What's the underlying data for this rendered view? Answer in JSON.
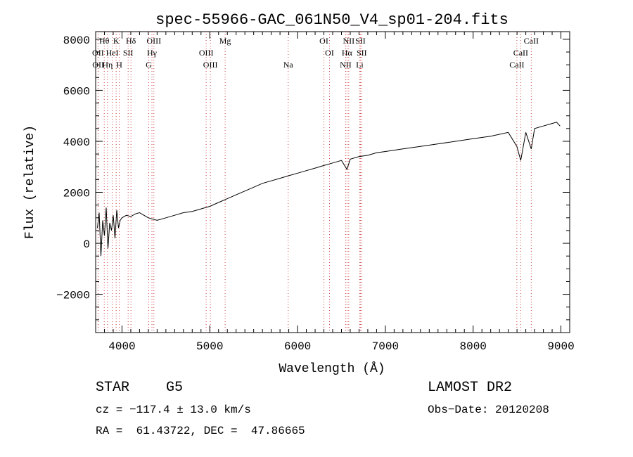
{
  "chart_data": {
    "type": "line",
    "title": "spec-55966-GAC_061N50_V4_sp01-204.fits",
    "xlabel": "Wavelength (Å)",
    "ylabel": "Flux (relative)",
    "xlim": [
      3700,
      9100
    ],
    "ylim": [
      -3500,
      8300
    ],
    "x_ticks": [
      4000,
      5000,
      6000,
      7000,
      8000,
      9000
    ],
    "y_ticks": [
      -2000,
      0,
      2000,
      4000,
      6000,
      8000
    ],
    "grid": false,
    "series": [
      {
        "x": [
          3720,
          3740,
          3760,
          3780,
          3800,
          3820,
          3840,
          3860,
          3880,
          3900,
          3920,
          3940,
          3960,
          3980,
          4000,
          4050,
          4100,
          4150,
          4200,
          4250,
          4300,
          4350,
          4400,
          4500,
          4600,
          4700,
          4800,
          4900,
          5000,
          5100,
          5200,
          5300,
          5400,
          5500,
          5600,
          5700,
          5800,
          5900,
          6000,
          6100,
          6200,
          6300,
          6400,
          6500,
          6563,
          6600,
          6700,
          6800,
          6900,
          7000,
          7200,
          7400,
          7600,
          7800,
          8000,
          8200,
          8400,
          8498,
          8542,
          8600,
          8662,
          8700,
          8800,
          8900,
          8950,
          8990
        ],
        "y": [
          600,
          1200,
          -500,
          900,
          300,
          1400,
          -200,
          800,
          500,
          1100,
          200,
          1300,
          600,
          900,
          1000,
          1100,
          1050,
          1150,
          1200,
          1100,
          1000,
          950,
          900,
          1000,
          1100,
          1200,
          1250,
          1350,
          1450,
          1600,
          1750,
          1900,
          2050,
          2200,
          2350,
          2450,
          2550,
          2650,
          2750,
          2850,
          2950,
          3050,
          3150,
          3250,
          2900,
          3300,
          3400,
          3450,
          3550,
          3600,
          3700,
          3800,
          3900,
          4000,
          4100,
          4200,
          4350,
          3800,
          3250,
          4350,
          3700,
          4500,
          4600,
          4700,
          4750,
          4600
        ]
      }
    ],
    "spectral_lines": [
      {
        "label": "Hθ",
        "wavelength": 3798,
        "row": 1
      },
      {
        "label": "OII",
        "wavelength": 3727,
        "row": 2
      },
      {
        "label": "OII",
        "wavelength": 3729,
        "row": 3
      },
      {
        "label": "HeI",
        "wavelength": 3889,
        "row": 2
      },
      {
        "label": "Hη",
        "wavelength": 3835,
        "row": 3
      },
      {
        "label": "K",
        "wavelength": 3934,
        "row": 1
      },
      {
        "label": "SII",
        "wavelength": 4070,
        "row": 2
      },
      {
        "label": "H",
        "wavelength": 3969,
        "row": 3
      },
      {
        "label": "Hδ",
        "wavelength": 4102,
        "row": 1
      },
      {
        "label": "OIII",
        "wavelength": 4363,
        "row": 1
      },
      {
        "label": "Hγ",
        "wavelength": 4341,
        "row": 2
      },
      {
        "label": "G",
        "wavelength": 4305,
        "row": 3
      },
      {
        "label": "OIII",
        "wavelength": 4959,
        "row": 2
      },
      {
        "label": "OIII",
        "wavelength": 5007,
        "row": 3
      },
      {
        "label": "Mg",
        "wavelength": 5175,
        "row": 1
      },
      {
        "label": "Na",
        "wavelength": 5893,
        "row": 3
      },
      {
        "label": "OI",
        "wavelength": 6300,
        "row": 1
      },
      {
        "label": "OI",
        "wavelength": 6364,
        "row": 2
      },
      {
        "label": "NII",
        "wavelength": 6583,
        "row": 1
      },
      {
        "label": "SII",
        "wavelength": 6716,
        "row": 1
      },
      {
        "label": "Hα",
        "wavelength": 6563,
        "row": 2
      },
      {
        "label": "SII",
        "wavelength": 6731,
        "row": 2
      },
      {
        "label": "NII",
        "wavelength": 6548,
        "row": 3
      },
      {
        "label": "Li",
        "wavelength": 6708,
        "row": 3
      },
      {
        "label": "CaII",
        "wavelength": 8662,
        "row": 1
      },
      {
        "label": "CaII",
        "wavelength": 8542,
        "row": 2
      },
      {
        "label": "CaII",
        "wavelength": 8498,
        "row": 3
      }
    ]
  },
  "info": {
    "class": "STAR",
    "subclass": "G5",
    "survey": "LAMOST DR2",
    "cz": "cz = −117.4 ± 13.0 km/s",
    "obs_date": "Obs−Date: 20120208",
    "coords": "RA =  61.43722, DEC =  47.86665"
  }
}
